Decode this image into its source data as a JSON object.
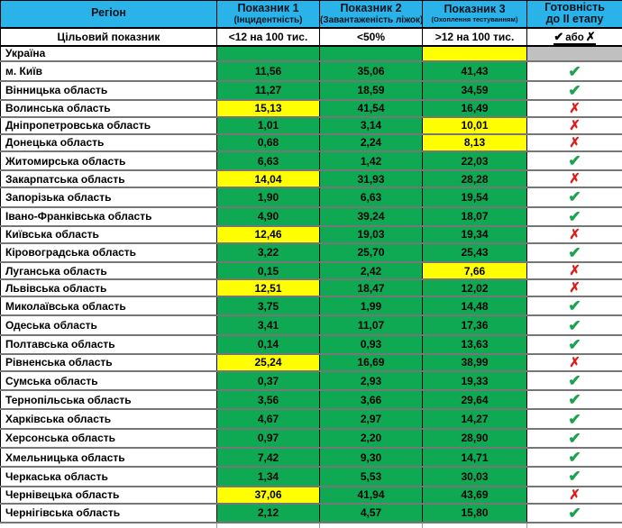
{
  "chart_data": {
    "type": "table",
    "title": "Readiness of Ukrainian regions for stage II (COVID-19 indicators)",
    "columns": [
      {
        "title": "Регіон"
      },
      {
        "title": "Показник 1",
        "subtitle": "(Інцидентність)"
      },
      {
        "title": "Показник 2",
        "subtitle": "(Завантаженість ліжок)"
      },
      {
        "title": "Показник 3",
        "subtitle": "(Охоплення тестуванням)"
      },
      {
        "title": "Готовність",
        "title_line2": "до II етапу"
      }
    ],
    "target_row": {
      "label": "Цільовий показник",
      "indicator1": "<12 на 100 тис.",
      "indicator2": "<50%",
      "indicator3": ">12 на 100 тис.",
      "readiness": "✔ або ✗"
    },
    "rows": [
      {
        "region": "Україна",
        "v1": "",
        "c1": "green",
        "v2": "",
        "c2": "green",
        "v3": "",
        "c3": "yellow",
        "ready": "none"
      },
      {
        "region": "м. Київ",
        "v1": "11,56",
        "c1": "green",
        "v2": "35,06",
        "c2": "green",
        "v3": "41,43",
        "c3": "green",
        "ready": "check"
      },
      {
        "region": "Вінницька область",
        "v1": "11,27",
        "c1": "green",
        "v2": "18,59",
        "c2": "green",
        "v3": "34,59",
        "c3": "green",
        "ready": "check"
      },
      {
        "region": "Волинська область",
        "v1": "15,13",
        "c1": "yellow",
        "v2": "41,54",
        "c2": "green",
        "v3": "16,49",
        "c3": "green",
        "ready": "cross"
      },
      {
        "region": "Дніпропетровська область",
        "v1": "1,01",
        "c1": "green",
        "v2": "3,14",
        "c2": "green",
        "v3": "10,01",
        "c3": "yellow",
        "ready": "cross"
      },
      {
        "region": "Донецька область",
        "v1": "0,68",
        "c1": "green",
        "v2": "2,24",
        "c2": "green",
        "v3": "8,13",
        "c3": "yellow",
        "ready": "cross"
      },
      {
        "region": "Житомирська область",
        "v1": "6,63",
        "c1": "green",
        "v2": "1,42",
        "c2": "green",
        "v3": "22,03",
        "c3": "green",
        "ready": "check"
      },
      {
        "region": "Закарпатська область",
        "v1": "14,04",
        "c1": "yellow",
        "v2": "31,93",
        "c2": "green",
        "v3": "28,28",
        "c3": "green",
        "ready": "cross"
      },
      {
        "region": "Запорізька область",
        "v1": "1,90",
        "c1": "green",
        "v2": "6,63",
        "c2": "green",
        "v3": "19,54",
        "c3": "green",
        "ready": "check"
      },
      {
        "region": "Івано-Франківська область",
        "v1": "4,90",
        "c1": "green",
        "v2": "39,24",
        "c2": "green",
        "v3": "18,07",
        "c3": "green",
        "ready": "check"
      },
      {
        "region": "Київська область",
        "v1": "12,46",
        "c1": "yellow",
        "v2": "19,03",
        "c2": "green",
        "v3": "19,34",
        "c3": "green",
        "ready": "cross"
      },
      {
        "region": "Кіровоградська область",
        "v1": "3,22",
        "c1": "green",
        "v2": "25,70",
        "c2": "green",
        "v3": "25,43",
        "c3": "green",
        "ready": "check"
      },
      {
        "region": "Луганська область",
        "v1": "0,15",
        "c1": "green",
        "v2": "2,42",
        "c2": "green",
        "v3": "7,66",
        "c3": "yellow",
        "ready": "cross"
      },
      {
        "region": "Львівська область",
        "v1": "12,51",
        "c1": "yellow",
        "v2": "18,47",
        "c2": "green",
        "v3": "12,02",
        "c3": "green",
        "ready": "cross"
      },
      {
        "region": "Миколаївська область",
        "v1": "3,75",
        "c1": "green",
        "v2": "1,99",
        "c2": "green",
        "v3": "14,48",
        "c3": "green",
        "ready": "check"
      },
      {
        "region": "Одеська область",
        "v1": "3,41",
        "c1": "green",
        "v2": "11,07",
        "c2": "green",
        "v3": "17,36",
        "c3": "green",
        "ready": "check"
      },
      {
        "region": "Полтавська область",
        "v1": "0,14",
        "c1": "green",
        "v2": "0,93",
        "c2": "green",
        "v3": "13,63",
        "c3": "green",
        "ready": "check"
      },
      {
        "region": "Рівненська область",
        "v1": "25,24",
        "c1": "yellow",
        "v2": "16,69",
        "c2": "green",
        "v3": "38,99",
        "c3": "green",
        "ready": "cross"
      },
      {
        "region": "Сумська область",
        "v1": "0,37",
        "c1": "green",
        "v2": "2,93",
        "c2": "green",
        "v3": "19,33",
        "c3": "green",
        "ready": "check"
      },
      {
        "region": "Тернопільська область",
        "v1": "3,56",
        "c1": "green",
        "v2": "3,66",
        "c2": "green",
        "v3": "29,64",
        "c3": "green",
        "ready": "check"
      },
      {
        "region": "Харківська область",
        "v1": "4,67",
        "c1": "green",
        "v2": "2,97",
        "c2": "green",
        "v3": "14,27",
        "c3": "green",
        "ready": "check"
      },
      {
        "region": "Херсонська область",
        "v1": "0,97",
        "c1": "green",
        "v2": "2,20",
        "c2": "green",
        "v3": "28,90",
        "c3": "green",
        "ready": "check"
      },
      {
        "region": "Хмельницька область",
        "v1": "7,42",
        "c1": "green",
        "v2": "9,30",
        "c2": "green",
        "v3": "14,71",
        "c3": "green",
        "ready": "check"
      },
      {
        "region": "Черкаська область",
        "v1": "1,34",
        "c1": "green",
        "v2": "5,53",
        "c2": "green",
        "v3": "30,03",
        "c3": "green",
        "ready": "check"
      },
      {
        "region": "Чернівецька область",
        "v1": "37,06",
        "c1": "yellow",
        "v2": "41,94",
        "c2": "green",
        "v3": "43,69",
        "c3": "green",
        "ready": "cross"
      },
      {
        "region": "Чернігівська область",
        "v1": "2,12",
        "c1": "green",
        "v2": "4,57",
        "c2": "green",
        "v3": "15,80",
        "c3": "green",
        "ready": "check"
      }
    ]
  },
  "glyphs": {
    "check": "✔",
    "cross": "✗",
    "or": "або"
  },
  "colors": {
    "header_bg": "#29B3E8",
    "pass_green": "#0FA953",
    "fail_yellow": "#FFFF00",
    "na_gray": "#C0C0C0",
    "check_green": "#1BA24C",
    "cross_red": "#DD1F1A"
  }
}
